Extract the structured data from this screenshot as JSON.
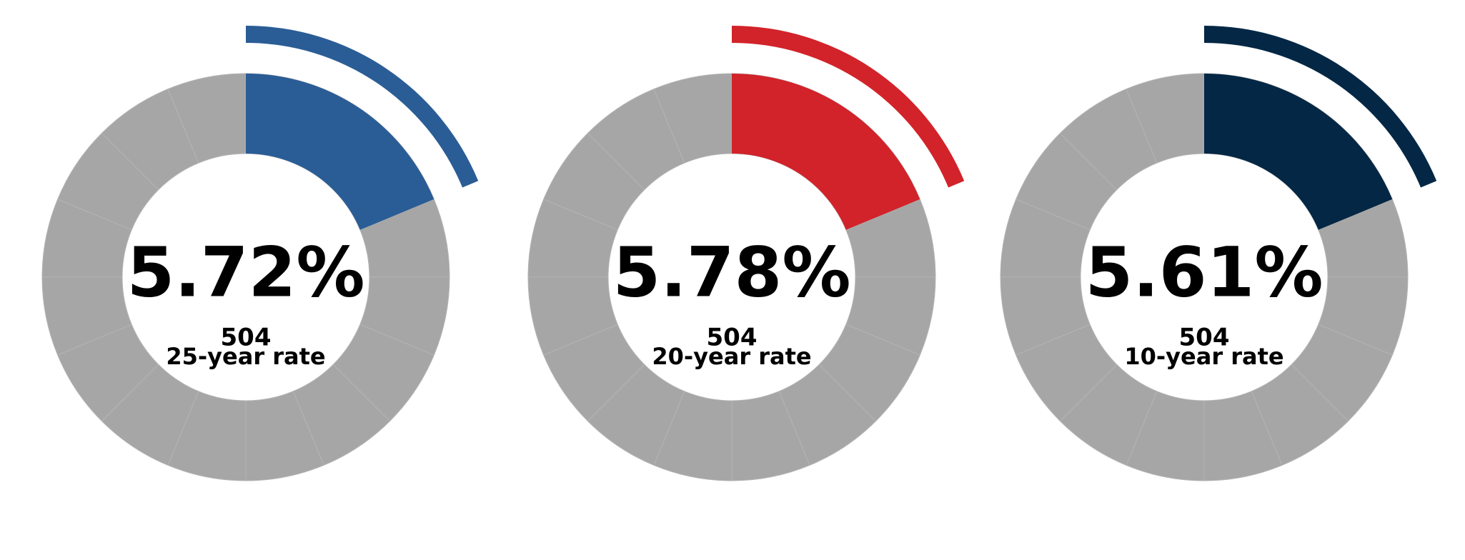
{
  "gauges": [
    {
      "value": "5.72%",
      "count": "504",
      "label": "25-year rate",
      "color": "#2a5d96"
    },
    {
      "value": "5.78%",
      "count": "504",
      "label": "20-year rate",
      "color": "#d2232a"
    },
    {
      "value": "5.61%",
      "count": "504",
      "label": "10-year rate",
      "color": "#032744"
    }
  ]
}
